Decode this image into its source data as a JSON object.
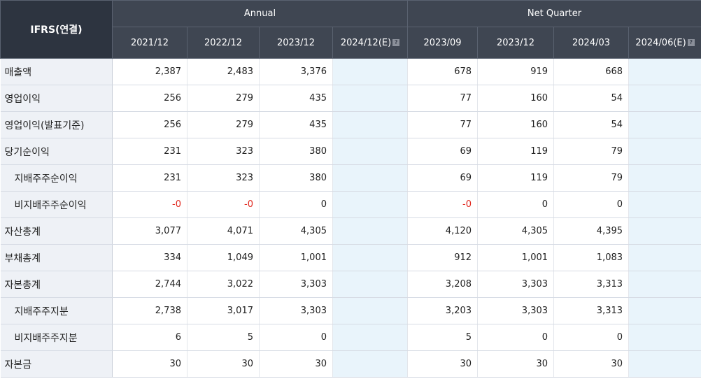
{
  "header": {
    "corner_label": "IFRS(연결)",
    "group_annual": "Annual",
    "group_quarter": "Net Quarter",
    "periods": [
      "2021/12",
      "2022/12",
      "2023/12",
      "2024/12(E)",
      "2023/09",
      "2023/12",
      "2024/03",
      "2024/06(E)"
    ],
    "help_glyph": "?"
  },
  "rows": [
    {
      "label": "매출액",
      "values": [
        "2,387",
        "2,483",
        "3,376",
        "",
        "678",
        "919",
        "668",
        ""
      ]
    },
    {
      "label": "영업이익",
      "values": [
        "256",
        "279",
        "435",
        "",
        "77",
        "160",
        "54",
        ""
      ]
    },
    {
      "label": "영업이익(발표기준)",
      "values": [
        "256",
        "279",
        "435",
        "",
        "77",
        "160",
        "54",
        ""
      ]
    },
    {
      "label": "당기순이익",
      "values": [
        "231",
        "323",
        "380",
        "",
        "69",
        "119",
        "79",
        ""
      ]
    },
    {
      "label": "지배주주순이익",
      "values": [
        "231",
        "323",
        "380",
        "",
        "69",
        "119",
        "79",
        ""
      ]
    },
    {
      "label": "비지배주주순이익",
      "values": [
        "-0",
        "-0",
        "0",
        "",
        "-0",
        "0",
        "0",
        ""
      ]
    },
    {
      "label": "자산총계",
      "values": [
        "3,077",
        "4,071",
        "4,305",
        "",
        "4,120",
        "4,305",
        "4,395",
        ""
      ]
    },
    {
      "label": "부채총계",
      "values": [
        "334",
        "1,049",
        "1,001",
        "",
        "912",
        "1,001",
        "1,083",
        ""
      ]
    },
    {
      "label": "자본총계",
      "values": [
        "2,744",
        "3,022",
        "3,303",
        "",
        "3,208",
        "3,303",
        "3,313",
        ""
      ]
    },
    {
      "label": "지배주주지분",
      "values": [
        "2,738",
        "3,017",
        "3,303",
        "",
        "3,203",
        "3,303",
        "3,313",
        ""
      ]
    },
    {
      "label": "비지배주주지분",
      "values": [
        "6",
        "5",
        "0",
        "",
        "5",
        "0",
        "0",
        ""
      ]
    },
    {
      "label": "자본금",
      "values": [
        "30",
        "30",
        "30",
        "",
        "30",
        "30",
        "30",
        ""
      ]
    }
  ],
  "colors": {
    "header_bg": "#3f4652",
    "corner_bg": "#2d3440",
    "label_bg": "#eef1f6",
    "estimate_bg": "#e9f4fb",
    "negative_text": "#e0271e"
  }
}
